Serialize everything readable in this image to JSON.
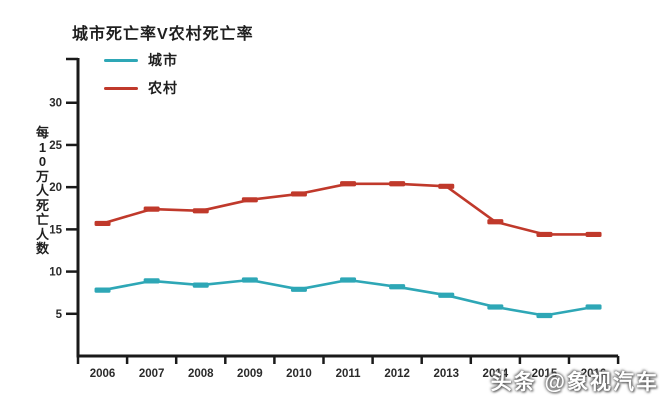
{
  "title": "城市死亡率V农村死亡率",
  "y_axis_label": "每10万人死亡人数",
  "watermark": "头条 @象视汽车",
  "colors": {
    "urban": "#2ea7b6",
    "rural": "#c0392b",
    "axis": "#1a1a1a",
    "tick_label": "#2b2b2b"
  },
  "chart_data": {
    "type": "line",
    "title": "城市死亡率V农村死亡率",
    "xlabel": "",
    "ylabel": "每10万人死亡人数",
    "categories": [
      "2006",
      "2007",
      "2008",
      "2009",
      "2010",
      "2011",
      "2012",
      "2013",
      "2014",
      "2015",
      "2016"
    ],
    "series": [
      {
        "name": "城市",
        "color": "#2ea7b6",
        "values": [
          7.8,
          8.9,
          8.4,
          9.0,
          7.9,
          9.0,
          8.2,
          7.2,
          5.8,
          4.8,
          5.8
        ]
      },
      {
        "name": "农村",
        "color": "#c0392b",
        "values": [
          15.7,
          17.4,
          17.2,
          18.5,
          19.2,
          20.4,
          20.4,
          20.1,
          15.9,
          14.4,
          14.4
        ]
      }
    ],
    "y_ticks": [
      5,
      10,
      15,
      20,
      25,
      30
    ],
    "ylim": [
      0,
      35.3
    ],
    "grid": false,
    "legend_position": "top-left",
    "marker": "thick-dash"
  }
}
